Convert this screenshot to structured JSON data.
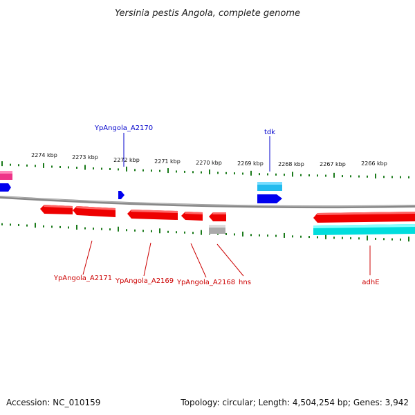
{
  "title": "Yersinia pestis Angola, complete genome",
  "footer": {
    "accession": "Accession: NC_010159",
    "info": "Topology: circular; Length: 4,504,254 bp; Genes: 3,942"
  },
  "colors": {
    "label_red": "#cc0000",
    "label_blue": "#0000cc",
    "tick": "#1a7a1a",
    "backbone": "#888888",
    "gene_red": "#ee0000",
    "gene_blue": "#0000ee",
    "gene_cyan": "#00dddd",
    "gene_sky": "#22bbee",
    "gene_pink": "#ee3388",
    "gene_gray": "#aaaaaa"
  },
  "ticks": {
    "labels": [
      "2274 kbp",
      "2273 kbp",
      "2272 kbp",
      "2271 kbp",
      "2270 kbp",
      "2269 kbp",
      "2268 kbp",
      "2267 kbp",
      "2266 kbp"
    ]
  },
  "genes": {
    "upper": [
      {
        "name": "YpAngola_A2170",
        "color": "blue"
      },
      {
        "name": "tdk",
        "color": "blue"
      }
    ],
    "lower": [
      {
        "name": "YpAngola_A2171",
        "color": "red"
      },
      {
        "name": "YpAngola_A2169",
        "color": "red"
      },
      {
        "name": "YpAngola_A2168",
        "color": "red"
      },
      {
        "name": "hns",
        "color": "red"
      },
      {
        "name": "adhE",
        "color": "red"
      }
    ]
  }
}
